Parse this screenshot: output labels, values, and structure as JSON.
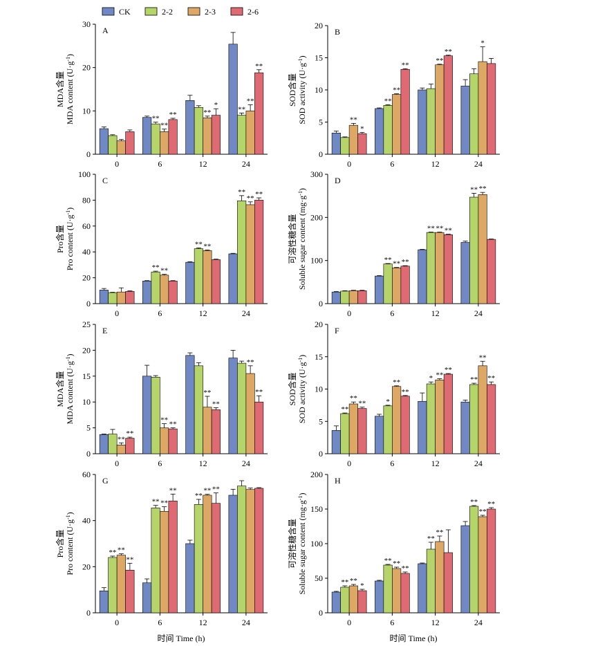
{
  "colors": {
    "CK": "#7089c4",
    "2-2": "#b5d56a",
    "2-3": "#dda865",
    "2-6": "#de6b74"
  },
  "legend": [
    "CK",
    "2-2",
    "2-3",
    "2-6"
  ],
  "categories": [
    "0",
    "6",
    "12",
    "24"
  ],
  "xlabel": "时间 Time (h)",
  "chart_data": [
    {
      "type": "bar",
      "panel": "A",
      "ylabel_cn": "MDA含量",
      "ylabel_en": "MDA content (U·g",
      "ylim": [
        0,
        30
      ],
      "yticks": [
        "0",
        "10",
        "20",
        "30"
      ],
      "series": [
        {
          "name": "CK",
          "values": [
            5.9,
            8.5,
            12.4,
            25.4
          ],
          "errors": [
            0.4,
            0.3,
            1.2,
            2.7
          ],
          "sig": [
            "",
            "",
            "",
            ""
          ]
        },
        {
          "name": "2-2",
          "values": [
            4.3,
            7.0,
            10.8,
            9.0
          ],
          "errors": [
            0.2,
            0.4,
            0.4,
            0.5
          ],
          "sig": [
            "",
            "**",
            "",
            "**"
          ]
        },
        {
          "name": "2-3",
          "values": [
            3.1,
            5.2,
            8.4,
            10.0
          ],
          "errors": [
            0.3,
            0.6,
            0.4,
            1.4
          ],
          "sig": [
            "",
            "**",
            "**",
            "**"
          ]
        },
        {
          "name": "2-6",
          "values": [
            5.2,
            8.0,
            9.0,
            18.8
          ],
          "errors": [
            0.4,
            0.3,
            1.5,
            0.7
          ],
          "sig": [
            "",
            "**",
            "*",
            "**"
          ]
        }
      ]
    },
    {
      "type": "bar",
      "panel": "B",
      "ylabel_cn": "SOD含量",
      "ylabel_en": "SOD activity (U·g",
      "ylim": [
        0,
        20
      ],
      "yticks": [
        "0",
        "5",
        "10",
        "15",
        "20"
      ],
      "series": [
        {
          "name": "CK",
          "values": [
            3.3,
            7.1,
            10.0,
            10.6
          ],
          "errors": [
            0.3,
            0.1,
            0.3,
            1.0
          ],
          "sig": [
            "",
            "",
            "",
            ""
          ]
        },
        {
          "name": "2-2",
          "values": [
            2.6,
            7.6,
            10.2,
            12.5
          ],
          "errors": [
            0.1,
            0.1,
            0.7,
            0.8
          ],
          "sig": [
            "",
            "**",
            "",
            ""
          ]
        },
        {
          "name": "2-3",
          "values": [
            4.5,
            9.3,
            13.9,
            14.4
          ],
          "errors": [
            0.3,
            0.1,
            0.1,
            2.3
          ],
          "sig": [
            "**",
            "**",
            "**",
            "*"
          ]
        },
        {
          "name": "2-6",
          "values": [
            3.2,
            13.2,
            15.3,
            14.1
          ],
          "errors": [
            0.2,
            0.1,
            0.1,
            0.8
          ],
          "sig": [
            "*",
            "**",
            "**",
            ""
          ]
        }
      ]
    },
    {
      "type": "bar",
      "panel": "C",
      "ylabel_cn": "Pro含量",
      "ylabel_en": "Pro content (U·g",
      "ylim": [
        0,
        100
      ],
      "yticks": [
        "0",
        "20",
        "40",
        "60",
        "80",
        "100"
      ],
      "series": [
        {
          "name": "CK",
          "values": [
            10.5,
            17.5,
            32.0,
            38.5
          ],
          "errors": [
            1.2,
            0.3,
            0.4,
            0.4
          ],
          "sig": [
            "",
            "",
            "",
            ""
          ]
        },
        {
          "name": "2-2",
          "values": [
            8.5,
            24.5,
            42.5,
            79.5
          ],
          "errors": [
            0.3,
            0.6,
            0.6,
            4.0
          ],
          "sig": [
            "",
            "**",
            "**",
            "**"
          ]
        },
        {
          "name": "2-3",
          "values": [
            9.0,
            22.0,
            41.0,
            76.5
          ],
          "errors": [
            3.2,
            0.7,
            0.5,
            2.2
          ],
          "sig": [
            "",
            "**",
            "**",
            "**"
          ]
        },
        {
          "name": "2-6",
          "values": [
            9.5,
            17.5,
            34.0,
            80.0
          ],
          "errors": [
            0.4,
            0.3,
            0.4,
            1.8
          ],
          "sig": [
            "",
            "",
            "",
            "**"
          ]
        }
      ]
    },
    {
      "type": "bar",
      "panel": "D",
      "ylabel_cn": "可溶性糖含量",
      "ylabel_en": "Soluble sugar content (mg·g",
      "ylim": [
        0,
        300
      ],
      "yticks": [
        "0",
        "100",
        "200",
        "300"
      ],
      "series": [
        {
          "name": "CK",
          "values": [
            27,
            64,
            125,
            142
          ],
          "errors": [
            1,
            1,
            1,
            3
          ],
          "sig": [
            "",
            "",
            "",
            ""
          ]
        },
        {
          "name": "2-2",
          "values": [
            29,
            92,
            165,
            247
          ],
          "errors": [
            1,
            1,
            1,
            9
          ],
          "sig": [
            "",
            "**",
            "**",
            "**"
          ]
        },
        {
          "name": "2-3",
          "values": [
            30,
            83,
            165,
            253
          ],
          "errors": [
            1,
            1,
            1,
            5
          ],
          "sig": [
            "",
            "**",
            "**",
            "**"
          ]
        },
        {
          "name": "2-6",
          "values": [
            30,
            87,
            160,
            149
          ],
          "errors": [
            1,
            1,
            1,
            1
          ],
          "sig": [
            "",
            "**",
            "**",
            ""
          ]
        }
      ]
    },
    {
      "type": "bar",
      "panel": "E",
      "ylabel_cn": "MDA含量",
      "ylabel_en": "MDA content (U·g",
      "ylim": [
        0,
        25
      ],
      "yticks": [
        "0",
        "5",
        "10",
        "15",
        "20",
        "25"
      ],
      "series": [
        {
          "name": "CK",
          "values": [
            3.7,
            15.0,
            19.0,
            18.5
          ],
          "errors": [
            0.1,
            2.1,
            0.5,
            1.5
          ],
          "sig": [
            "",
            "",
            "",
            ""
          ]
        },
        {
          "name": "2-2",
          "values": [
            3.8,
            14.8,
            17.0,
            17.5
          ],
          "errors": [
            0.9,
            0.3,
            0.6,
            0.4
          ],
          "sig": [
            "",
            "",
            "",
            ""
          ]
        },
        {
          "name": "2-3",
          "values": [
            1.7,
            5.0,
            9.0,
            15.5
          ],
          "errors": [
            0.4,
            0.8,
            2.1,
            1.5
          ],
          "sig": [
            "**",
            "**",
            "**",
            "**"
          ]
        },
        {
          "name": "2-6",
          "values": [
            3.0,
            4.8,
            8.5,
            10.0
          ],
          "errors": [
            0.2,
            0.2,
            0.4,
            1.2
          ],
          "sig": [
            "**",
            "**",
            "**",
            "**"
          ]
        }
      ]
    },
    {
      "type": "bar",
      "panel": "F",
      "ylabel_cn": "SOD含量",
      "ylabel_en": "SOD activity (U·g",
      "ylim": [
        0,
        20
      ],
      "yticks": [
        "0",
        "5",
        "10",
        "15",
        "20"
      ],
      "series": [
        {
          "name": "CK",
          "values": [
            3.6,
            5.8,
            8.1,
            8.0
          ],
          "errors": [
            0.7,
            0.3,
            1.3,
            0.3
          ],
          "sig": [
            "",
            "",
            "",
            ""
          ]
        },
        {
          "name": "2-2",
          "values": [
            6.2,
            7.4,
            10.8,
            10.7
          ],
          "errors": [
            0.1,
            0.1,
            0.3,
            0.2
          ],
          "sig": [
            "**",
            "*",
            "*",
            "**"
          ]
        },
        {
          "name": "2-3",
          "values": [
            7.7,
            10.4,
            11.4,
            13.6
          ],
          "errors": [
            0.3,
            0.1,
            0.2,
            0.7
          ],
          "sig": [
            "**",
            "**",
            "**",
            "**"
          ]
        },
        {
          "name": "2-6",
          "values": [
            7.0,
            8.9,
            12.3,
            10.7
          ],
          "errors": [
            0.2,
            0.1,
            0.1,
            0.4
          ],
          "sig": [
            "**",
            "**",
            "**",
            "**"
          ]
        }
      ]
    },
    {
      "type": "bar",
      "panel": "G",
      "ylabel_cn": "Pro含量",
      "ylabel_en": "Pro content (U·g",
      "ylim": [
        0,
        60
      ],
      "yticks": [
        "0",
        "20",
        "40",
        "60"
      ],
      "series": [
        {
          "name": "CK",
          "values": [
            9.5,
            13.0,
            30.0,
            51.0
          ],
          "errors": [
            1.4,
            1.7,
            1.5,
            2.6
          ],
          "sig": [
            "",
            "",
            "",
            ""
          ]
        },
        {
          "name": "2-2",
          "values": [
            24.0,
            45.5,
            47.0,
            55.0
          ],
          "errors": [
            0.6,
            1.1,
            2.2,
            2.3
          ],
          "sig": [
            "**",
            "**",
            "**",
            ""
          ]
        },
        {
          "name": "2-3",
          "values": [
            25.0,
            44.0,
            51.0,
            53.5
          ],
          "errors": [
            0.6,
            2.0,
            0.4,
            0.6
          ],
          "sig": [
            "**",
            "**",
            "**",
            ""
          ]
        },
        {
          "name": "2-6",
          "values": [
            18.5,
            48.5,
            47.5,
            54.0
          ],
          "errors": [
            3.0,
            3.0,
            4.5,
            0.3
          ],
          "sig": [
            "**",
            "**",
            "**",
            ""
          ]
        }
      ]
    },
    {
      "type": "bar",
      "panel": "H",
      "ylabel_cn": "可溶性糖含量",
      "ylabel_en": "Soluble sugar content (mg·g",
      "ylim": [
        0,
        200
      ],
      "yticks": [
        "0",
        "50",
        "100",
        "150",
        "200"
      ],
      "series": [
        {
          "name": "CK",
          "values": [
            30,
            46,
            71,
            126
          ],
          "errors": [
            1,
            1,
            1,
            6
          ],
          "sig": [
            "",
            "",
            "",
            ""
          ]
        },
        {
          "name": "2-2",
          "values": [
            37,
            69,
            92,
            154
          ],
          "errors": [
            2,
            1,
            10,
            1
          ],
          "sig": [
            "**",
            "**",
            "**",
            "**"
          ]
        },
        {
          "name": "2-3",
          "values": [
            39,
            64,
            103,
            139
          ],
          "errors": [
            2,
            2,
            8,
            2
          ],
          "sig": [
            "**",
            "**",
            "**",
            "**"
          ]
        },
        {
          "name": "2-6",
          "values": [
            32,
            57,
            87,
            150
          ],
          "errors": [
            2,
            2,
            33,
            2
          ],
          "sig": [
            "*",
            "**",
            "",
            "**"
          ]
        }
      ]
    }
  ]
}
